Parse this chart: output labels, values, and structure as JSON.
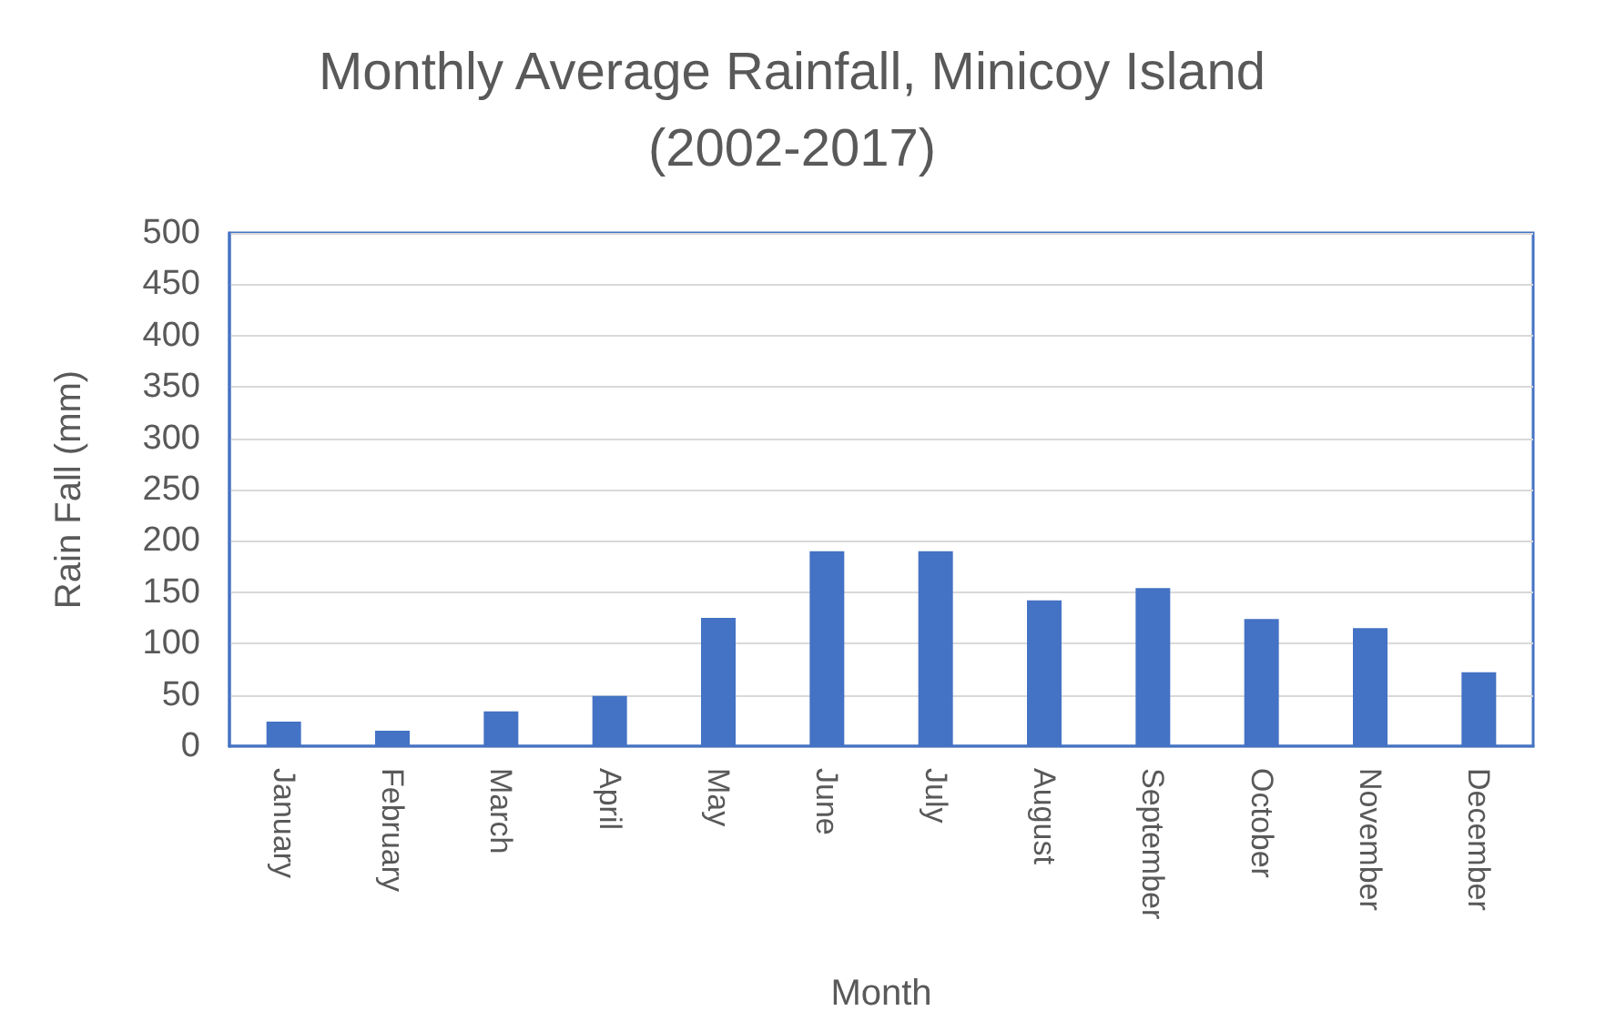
{
  "chart_data": {
    "type": "bar",
    "title": "Monthly Average Rainfall, Minicoy Island\n(2002-2017)",
    "xlabel": "Month",
    "ylabel": "Rain Fall (mm)",
    "categories": [
      "January",
      "February",
      "March",
      "April",
      "May",
      "June",
      "July",
      "August",
      "September",
      "October",
      "November",
      "December"
    ],
    "values": [
      24,
      15,
      34,
      49,
      125,
      190,
      190,
      142,
      154,
      124,
      115,
      72
    ],
    "color": "#4472c4",
    "ylim": [
      0,
      500
    ],
    "yticks": [
      0,
      50,
      100,
      150,
      200,
      250,
      300,
      350,
      400,
      450,
      500
    ],
    "grid": "y"
  }
}
